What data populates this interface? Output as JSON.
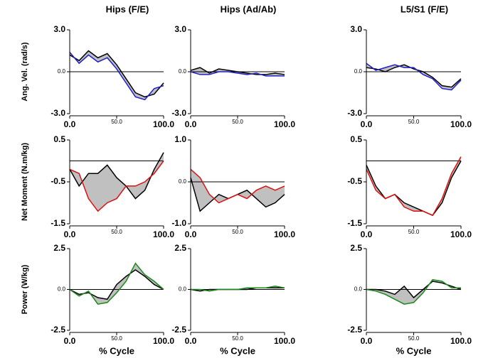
{
  "chart_data": [
    {
      "type": "line",
      "title": "Hips (F/E)",
      "ylabel": "Ang. Vel. (rad/s)",
      "x": [
        0,
        10,
        20,
        30,
        40,
        50,
        60,
        70,
        80,
        90,
        100
      ],
      "series": [
        {
          "color": "#000000",
          "values": [
            1.2,
            0.8,
            1.5,
            1.0,
            1.3,
            0.5,
            -0.5,
            -1.5,
            -1.8,
            -1.6,
            -0.8
          ]
        },
        {
          "color": "#1f1fd0",
          "values": [
            1.4,
            0.6,
            1.2,
            0.7,
            1.0,
            0.2,
            -0.8,
            -1.8,
            -2.0,
            -1.2,
            -1.0
          ]
        }
      ],
      "band_color": "#c0c0c0",
      "reference_line": 0,
      "xlim": [
        0,
        100
      ],
      "ylim": [
        -3,
        3
      ],
      "xticks": [
        {
          "value": 0,
          "label": "0.0"
        },
        {
          "value": 50,
          "label": "50.0"
        },
        {
          "value": 100,
          "label": "100.0"
        }
      ],
      "yticks": [
        {
          "value": -3,
          "label": "-3.0"
        },
        {
          "value": 0,
          "label": "0.0"
        },
        {
          "value": 3,
          "label": "3.0"
        }
      ]
    },
    {
      "type": "line",
      "title": "Hips (Ad/Ab)",
      "x": [
        0,
        10,
        20,
        30,
        40,
        50,
        60,
        70,
        80,
        90,
        100
      ],
      "series": [
        {
          "color": "#000000",
          "values": [
            0.1,
            0.3,
            -0.1,
            0.2,
            0.1,
            0,
            -0.1,
            -0.2,
            -0.2,
            -0.1,
            -0.2
          ]
        },
        {
          "color": "#1f1fd0",
          "values": [
            0,
            -0.2,
            -0.2,
            0,
            0,
            -0.1,
            -0.2,
            -0.1,
            -0.3,
            -0.3,
            -0.3
          ]
        }
      ],
      "band_color": "#c0c0c0",
      "reference_line": 0,
      "xlim": [
        0,
        100
      ],
      "ylim": [
        -3,
        3
      ],
      "xticks": [
        {
          "value": 0,
          "label": "0.0"
        },
        {
          "value": 50,
          "label": "50.0"
        },
        {
          "value": 100,
          "label": "100.0"
        }
      ],
      "yticks": [
        {
          "value": -3,
          "label": "-3.0"
        },
        {
          "value": 0,
          "label": "0.0"
        },
        {
          "value": 3,
          "label": "3.0"
        }
      ]
    },
    {
      "type": "line",
      "title": "L5/S1 (F/E)",
      "x": [
        0,
        10,
        20,
        30,
        40,
        50,
        60,
        70,
        80,
        90,
        100
      ],
      "series": [
        {
          "color": "#000000",
          "values": [
            0.3,
            0.2,
            0,
            0.3,
            0.5,
            0.2,
            0,
            -0.4,
            -1.0,
            -1.1,
            -0.5
          ]
        },
        {
          "color": "#1f1fd0",
          "values": [
            0.6,
            0.1,
            0.3,
            0.5,
            0.3,
            0.3,
            -0.2,
            -0.5,
            -1.2,
            -1.3,
            -0.6
          ]
        }
      ],
      "band_color": "#c0c0c0",
      "reference_line": 0,
      "xlim": [
        0,
        100
      ],
      "ylim": [
        -3,
        3
      ],
      "xticks": [
        {
          "value": 0,
          "label": "0.0"
        },
        {
          "value": 50,
          "label": "50.0"
        },
        {
          "value": 100,
          "label": "100.0"
        }
      ],
      "yticks": [
        {
          "value": -3,
          "label": "-3.0"
        },
        {
          "value": 0,
          "label": "0.0"
        },
        {
          "value": 3,
          "label": "3.0"
        }
      ]
    },
    {
      "type": "line",
      "ylabel": "Net Moment (N.m/kg)",
      "x": [
        0,
        10,
        20,
        30,
        40,
        50,
        60,
        70,
        80,
        90,
        100
      ],
      "series": [
        {
          "color": "#000000",
          "values": [
            -0.2,
            -0.6,
            -0.3,
            -0.3,
            -0.1,
            -0.4,
            -0.6,
            -0.9,
            -0.7,
            -0.2,
            0.2
          ]
        },
        {
          "color": "#e01010",
          "values": [
            -0.2,
            -0.3,
            -0.9,
            -1.2,
            -1.0,
            -0.9,
            -0.6,
            -0.6,
            -0.5,
            -0.3,
            0.0
          ]
        }
      ],
      "band_color": "#c0c0c0",
      "reference_line": 0,
      "xlim": [
        0,
        100
      ],
      "ylim": [
        -1.5,
        0.5
      ],
      "xticks": [
        {
          "value": 0,
          "label": "0.0"
        },
        {
          "value": 50,
          "label": "50.0"
        },
        {
          "value": 100,
          "label": "100.0"
        }
      ],
      "yticks": [
        {
          "value": -1.5,
          "label": "-1.5"
        },
        {
          "value": -0.5,
          "label": "-0.5"
        },
        {
          "value": 0.5,
          "label": "0.5"
        }
      ]
    },
    {
      "type": "line",
      "x": [
        0,
        10,
        20,
        30,
        40,
        50,
        60,
        70,
        80,
        90,
        100
      ],
      "series": [
        {
          "color": "#000000",
          "values": [
            0.1,
            -0.7,
            -0.5,
            -0.3,
            -0.4,
            -0.3,
            -0.2,
            -0.4,
            -0.6,
            -0.5,
            -0.3
          ]
        },
        {
          "color": "#e01010",
          "values": [
            0.3,
            0.1,
            -0.3,
            -0.5,
            -0.4,
            -0.3,
            -0.4,
            -0.2,
            -0.1,
            -0.2,
            -0.1
          ]
        }
      ],
      "band_color": "#c0c0c0",
      "reference_line": 0,
      "xlim": [
        0,
        100
      ],
      "ylim": [
        -1,
        1
      ],
      "xticks": [
        {
          "value": 0,
          "label": "0.0"
        },
        {
          "value": 50,
          "label": "50.0"
        },
        {
          "value": 100,
          "label": "100.0"
        }
      ],
      "yticks": [
        {
          "value": -1,
          "label": "-1.0"
        },
        {
          "value": 0,
          "label": "0.0"
        },
        {
          "value": 1,
          "label": "1.0"
        }
      ]
    },
    {
      "type": "line",
      "x": [
        0,
        10,
        20,
        30,
        40,
        50,
        60,
        70,
        80,
        90,
        100
      ],
      "series": [
        {
          "color": "#000000",
          "values": [
            -0.1,
            -0.6,
            -0.9,
            -0.8,
            -1.0,
            -1.1,
            -1.2,
            -1.3,
            -1.0,
            -0.4,
            0.0
          ]
        },
        {
          "color": "#e01010",
          "values": [
            -0.2,
            -0.7,
            -0.9,
            -0.8,
            -1.1,
            -1.2,
            -1.2,
            -1.3,
            -0.9,
            -0.3,
            0.1
          ]
        }
      ],
      "band_color": "#c0c0c0",
      "reference_line": 0,
      "xlim": [
        0,
        100
      ],
      "ylim": [
        -1.5,
        0.5
      ],
      "xticks": [
        {
          "value": 0,
          "label": "0.0"
        },
        {
          "value": 50,
          "label": "50.0"
        },
        {
          "value": 100,
          "label": "100.0"
        }
      ],
      "yticks": [
        {
          "value": -1.5,
          "label": "-1.5"
        },
        {
          "value": -0.5,
          "label": "-0.5"
        },
        {
          "value": 0.5,
          "label": "0.5"
        }
      ]
    },
    {
      "type": "line",
      "ylabel": "Power (W/kg)",
      "xlabel": "% Cycle",
      "x": [
        0,
        10,
        20,
        30,
        40,
        50,
        60,
        70,
        80,
        90,
        100
      ],
      "series": [
        {
          "color": "#000000",
          "values": [
            0,
            -0.3,
            -0.2,
            -0.5,
            -0.6,
            0.3,
            0.8,
            1.2,
            0.8,
            0.3,
            0
          ]
        },
        {
          "color": "#1a8a1a",
          "values": [
            0,
            -0.4,
            -0.1,
            -0.9,
            -0.8,
            -0.2,
            0.5,
            1.6,
            0.9,
            0.5,
            0
          ]
        }
      ],
      "band_color": "#c0c0c0",
      "reference_line": 0,
      "xlim": [
        0,
        100
      ],
      "ylim": [
        -2.5,
        2.5
      ],
      "xticks": [
        {
          "value": 0,
          "label": "0.0"
        },
        {
          "value": 50,
          "label": "50.0"
        },
        {
          "value": 100,
          "label": "100.0"
        }
      ],
      "yticks": [
        {
          "value": -2.5,
          "label": "-2.5"
        },
        {
          "value": 0,
          "label": "0.0"
        },
        {
          "value": 2.5,
          "label": "2.5"
        }
      ]
    },
    {
      "type": "line",
      "xlabel": "% Cycle",
      "x": [
        0,
        10,
        20,
        30,
        40,
        50,
        60,
        70,
        80,
        90,
        100
      ],
      "series": [
        {
          "color": "#000000",
          "values": [
            0,
            -0.1,
            0,
            0,
            0,
            0,
            0,
            0.1,
            0.1,
            0.1,
            0.1
          ]
        },
        {
          "color": "#1a8a1a",
          "values": [
            0,
            0,
            -0.1,
            0,
            0,
            0,
            0.1,
            0.1,
            0.1,
            0.2,
            0.1
          ]
        }
      ],
      "band_color": "#c0c0c0",
      "reference_line": 0,
      "xlim": [
        0,
        100
      ],
      "ylim": [
        -2.5,
        2.5
      ],
      "xticks": [
        {
          "value": 0,
          "label": "0.0"
        },
        {
          "value": 50,
          "label": "50.0"
        },
        {
          "value": 100,
          "label": "100.0"
        }
      ],
      "yticks": [
        {
          "value": -2.5,
          "label": "-2.5"
        },
        {
          "value": 0,
          "label": "0.0"
        },
        {
          "value": 2.5,
          "label": "2.5"
        }
      ]
    },
    {
      "type": "line",
      "xlabel": "% Cycle",
      "x": [
        0,
        10,
        20,
        30,
        40,
        50,
        60,
        70,
        80,
        90,
        100
      ],
      "series": [
        {
          "color": "#000000",
          "values": [
            0,
            0,
            -0.1,
            -0.3,
            0.2,
            -0.5,
            0,
            0.5,
            0.4,
            0.2,
            0
          ]
        },
        {
          "color": "#1a8a1a",
          "values": [
            0,
            -0.1,
            -0.3,
            -0.6,
            -0.9,
            -0.8,
            -0.2,
            0.6,
            0.5,
            0.1,
            0.1
          ]
        }
      ],
      "band_color": "#c0c0c0",
      "reference_line": 0,
      "xlim": [
        0,
        100
      ],
      "ylim": [
        -2.5,
        2.5
      ],
      "xticks": [
        {
          "value": 0,
          "label": "0.0"
        },
        {
          "value": 50,
          "label": "50.0"
        },
        {
          "value": 100,
          "label": "100.0"
        }
      ],
      "yticks": [
        {
          "value": -2.5,
          "label": "-2.5"
        },
        {
          "value": 0,
          "label": "0.0"
        },
        {
          "value": 2.5,
          "label": "2.5"
        }
      ]
    }
  ]
}
